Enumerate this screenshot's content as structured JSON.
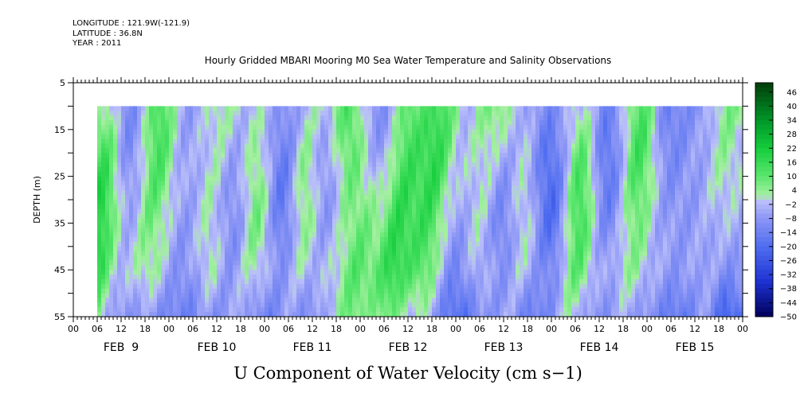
{
  "header": {
    "longitude": "LONGITUDE : 121.9W(-121.9)",
    "latitude": "LATITUDE : 36.8N",
    "year": "YEAR : 2011"
  },
  "chart_data": {
    "type": "heatmap",
    "title": "Hourly Gridded MBARI Mooring M0 Sea Water Temperature and Salinity Observations",
    "bottom_title": "U Component of Water Velocity (cm s−1)",
    "ylabel": "DEPTH (m)",
    "xlabel": "",
    "ylim": [
      55,
      5
    ],
    "y_ticks": [
      5,
      15,
      25,
      35,
      45,
      55
    ],
    "x_start_hours": 0,
    "x_end_hours": 168,
    "data_x_start_hours": 6,
    "data_depth_range": [
      10,
      55
    ],
    "x_hour_tick_labels": [
      "00",
      "06",
      "12",
      "18",
      "00",
      "06",
      "12",
      "18",
      "00",
      "06",
      "12",
      "18",
      "00",
      "06",
      "12",
      "18",
      "00",
      "06",
      "12",
      "18",
      "00",
      "06",
      "12",
      "18",
      "00",
      "06",
      "12",
      "18",
      "00"
    ],
    "x_day_labels": [
      "FEB  9",
      "FEB 10",
      "FEB 11",
      "FEB 12",
      "FEB 13",
      "FEB 14",
      "FEB 15"
    ],
    "colorbar": {
      "range": [
        -50,
        50
      ],
      "tick_labels": [
        "46",
        "40",
        "34",
        "28",
        "22",
        "16",
        "10",
        "4",
        "-2",
        "-8",
        "-14",
        "-20",
        "-26",
        "-32",
        "-38",
        "-44",
        "-50"
      ],
      "colors": {
        "positive_max": "#003300",
        "positive_mid": "#00cc33",
        "near_zero_pos": "#a8f0a0",
        "near_zero_neg": "#b0b8f8",
        "negative_mid": "#5070f0",
        "negative_max": "#000060"
      }
    },
    "pattern": {
      "description_units": "time-hours vs depth-m",
      "positive_bands_center_hours": [
        7,
        20,
        35,
        46,
        58,
        67,
        73,
        82,
        90,
        103,
        113,
        127,
        141,
        162
      ],
      "negative_bands_center_hours": [
        14,
        28,
        41,
        53,
        63,
        78,
        95,
        108,
        120,
        134,
        150,
        160
      ]
    }
  }
}
